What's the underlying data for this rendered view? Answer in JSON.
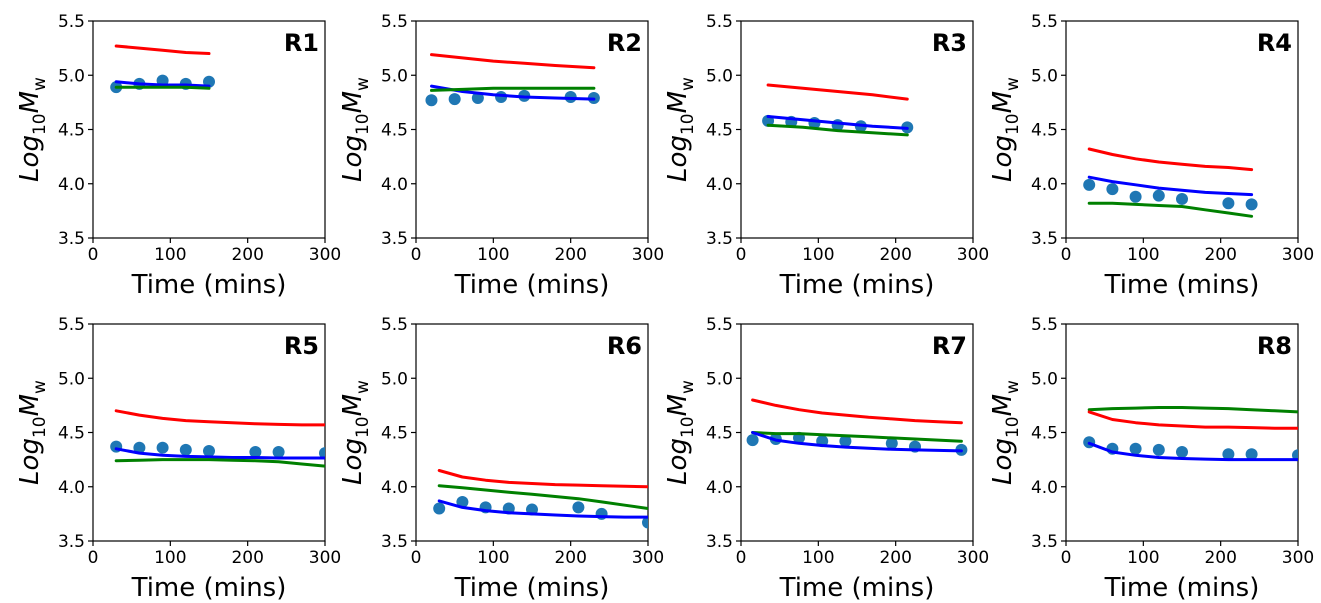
{
  "colors": {
    "red": "#ff0000",
    "green": "#008000",
    "blue": "#0000ff",
    "points": "#1f77b4"
  },
  "chart_data": [
    {
      "type": "line",
      "title": "R1",
      "xlabel": "Time (mins)",
      "ylabel": {
        "prefix": "Log",
        "sub1": "10",
        "main": "M",
        "sub2": "w"
      },
      "xlim": [
        0,
        300
      ],
      "ylim": [
        3.5,
        5.5
      ],
      "xticks": [
        "0",
        "100",
        "200",
        "300"
      ],
      "yticks": [
        "3.5",
        "4.0",
        "4.5",
        "5.0",
        "5.5"
      ],
      "scatter": {
        "x": [
          30,
          60,
          90,
          120,
          150
        ],
        "y": [
          4.89,
          4.92,
          4.95,
          4.92,
          4.94
        ]
      },
      "series": [
        {
          "color": "red",
          "x": [
            30,
            60,
            90,
            120,
            150
          ],
          "y": [
            5.27,
            5.25,
            5.23,
            5.21,
            5.2
          ]
        },
        {
          "color": "blue",
          "x": [
            30,
            60,
            90,
            120,
            150
          ],
          "y": [
            4.94,
            4.92,
            4.91,
            4.91,
            4.9
          ]
        },
        {
          "color": "green",
          "x": [
            30,
            60,
            90,
            120,
            150
          ],
          "y": [
            4.89,
            4.89,
            4.89,
            4.89,
            4.88
          ]
        }
      ]
    },
    {
      "type": "line",
      "title": "R2",
      "xlabel": "Time (mins)",
      "ylabel": {
        "prefix": "Log",
        "sub1": "10",
        "main": "M",
        "sub2": "w"
      },
      "xlim": [
        0,
        300
      ],
      "ylim": [
        3.5,
        5.5
      ],
      "xticks": [
        "0",
        "100",
        "200",
        "300"
      ],
      "yticks": [
        "3.5",
        "4.0",
        "4.5",
        "5.0",
        "5.5"
      ],
      "scatter": {
        "x": [
          20,
          50,
          80,
          110,
          140,
          200,
          230
        ],
        "y": [
          4.77,
          4.78,
          4.79,
          4.8,
          4.81,
          4.8,
          4.79
        ]
      },
      "series": [
        {
          "color": "red",
          "x": [
            20,
            60,
            100,
            140,
            180,
            230
          ],
          "y": [
            5.19,
            5.16,
            5.13,
            5.11,
            5.09,
            5.07
          ]
        },
        {
          "color": "blue",
          "x": [
            20,
            60,
            100,
            140,
            180,
            230
          ],
          "y": [
            4.9,
            4.85,
            4.82,
            4.8,
            4.79,
            4.78
          ]
        },
        {
          "color": "green",
          "x": [
            20,
            60,
            100,
            140,
            180,
            230
          ],
          "y": [
            4.86,
            4.87,
            4.88,
            4.88,
            4.88,
            4.88
          ]
        }
      ]
    },
    {
      "type": "line",
      "title": "R3",
      "xlabel": "Time (mins)",
      "ylabel": {
        "prefix": "Log",
        "sub1": "10",
        "main": "M",
        "sub2": "w"
      },
      "xlim": [
        0,
        300
      ],
      "ylim": [
        3.5,
        5.5
      ],
      "xticks": [
        "0",
        "100",
        "200",
        "300"
      ],
      "yticks": [
        "3.5",
        "4.0",
        "4.5",
        "5.0",
        "5.5"
      ],
      "scatter": {
        "x": [
          35,
          65,
          95,
          125,
          155,
          215
        ],
        "y": [
          4.58,
          4.57,
          4.56,
          4.54,
          4.53,
          4.52
        ]
      },
      "series": [
        {
          "color": "red",
          "x": [
            35,
            80,
            125,
            170,
            215
          ],
          "y": [
            4.91,
            4.88,
            4.85,
            4.82,
            4.78
          ]
        },
        {
          "color": "blue",
          "x": [
            35,
            80,
            125,
            170,
            215
          ],
          "y": [
            4.62,
            4.59,
            4.56,
            4.53,
            4.51
          ]
        },
        {
          "color": "green",
          "x": [
            35,
            80,
            125,
            170,
            215
          ],
          "y": [
            4.54,
            4.52,
            4.49,
            4.47,
            4.45
          ]
        }
      ]
    },
    {
      "type": "line",
      "title": "R4",
      "xlabel": "Time (mins)",
      "ylabel": {
        "prefix": "Log",
        "sub1": "10",
        "main": "M",
        "sub2": "w"
      },
      "xlim": [
        0,
        300
      ],
      "ylim": [
        3.5,
        5.5
      ],
      "xticks": [
        "0",
        "100",
        "200",
        "300"
      ],
      "yticks": [
        "3.5",
        "4.0",
        "4.5",
        "5.0",
        "5.5"
      ],
      "scatter": {
        "x": [
          30,
          60,
          90,
          120,
          150,
          210,
          240
        ],
        "y": [
          3.99,
          3.95,
          3.88,
          3.89,
          3.86,
          3.82,
          3.81
        ]
      },
      "series": [
        {
          "color": "red",
          "x": [
            30,
            60,
            90,
            120,
            150,
            180,
            210,
            240
          ],
          "y": [
            4.32,
            4.27,
            4.23,
            4.2,
            4.18,
            4.16,
            4.15,
            4.13
          ]
        },
        {
          "color": "blue",
          "x": [
            30,
            60,
            90,
            120,
            150,
            180,
            210,
            240
          ],
          "y": [
            4.06,
            4.02,
            3.99,
            3.96,
            3.94,
            3.92,
            3.91,
            3.9
          ]
        },
        {
          "color": "green",
          "x": [
            30,
            60,
            90,
            120,
            150,
            180,
            210,
            240
          ],
          "y": [
            3.82,
            3.82,
            3.81,
            3.8,
            3.79,
            3.76,
            3.73,
            3.7
          ]
        }
      ]
    },
    {
      "type": "line",
      "title": "R5",
      "xlabel": "Time (mins)",
      "ylabel": {
        "prefix": "Log",
        "sub1": "10",
        "main": "M",
        "sub2": "w"
      },
      "xlim": [
        0,
        300
      ],
      "ylim": [
        3.5,
        5.5
      ],
      "xticks": [
        "0",
        "100",
        "200",
        "300"
      ],
      "yticks": [
        "3.5",
        "4.0",
        "4.5",
        "5.0",
        "5.5"
      ],
      "scatter": {
        "x": [
          30,
          60,
          90,
          120,
          150,
          210,
          240,
          300
        ],
        "y": [
          4.37,
          4.36,
          4.36,
          4.34,
          4.33,
          4.32,
          4.32,
          4.31
        ]
      },
      "series": [
        {
          "color": "red",
          "x": [
            30,
            60,
            90,
            120,
            150,
            180,
            210,
            240,
            270,
            300
          ],
          "y": [
            4.7,
            4.66,
            4.63,
            4.61,
            4.6,
            4.59,
            4.58,
            4.575,
            4.57,
            4.57
          ]
        },
        {
          "color": "blue",
          "x": [
            30,
            60,
            90,
            120,
            150,
            180,
            210,
            240,
            270,
            300
          ],
          "y": [
            4.35,
            4.31,
            4.29,
            4.28,
            4.275,
            4.27,
            4.27,
            4.265,
            4.265,
            4.265
          ]
        },
        {
          "color": "green",
          "x": [
            30,
            60,
            90,
            120,
            150,
            180,
            210,
            240,
            270,
            300
          ],
          "y": [
            4.24,
            4.245,
            4.25,
            4.25,
            4.25,
            4.245,
            4.24,
            4.23,
            4.21,
            4.19
          ]
        }
      ]
    },
    {
      "type": "line",
      "title": "R6",
      "xlabel": "Time (mins)",
      "ylabel": {
        "prefix": "Log",
        "sub1": "10",
        "main": "M",
        "sub2": "w"
      },
      "xlim": [
        0,
        300
      ],
      "ylim": [
        3.5,
        5.5
      ],
      "xticks": [
        "0",
        "100",
        "200",
        "300"
      ],
      "yticks": [
        "3.5",
        "4.0",
        "4.5",
        "5.0",
        "5.5"
      ],
      "scatter": {
        "x": [
          30,
          60,
          90,
          120,
          150,
          210,
          240,
          300
        ],
        "y": [
          3.8,
          3.86,
          3.81,
          3.8,
          3.79,
          3.81,
          3.75,
          3.67
        ]
      },
      "series": [
        {
          "color": "red",
          "x": [
            30,
            60,
            90,
            120,
            150,
            180,
            210,
            240,
            270,
            300
          ],
          "y": [
            4.15,
            4.09,
            4.06,
            4.04,
            4.03,
            4.02,
            4.015,
            4.01,
            4.005,
            4.0
          ]
        },
        {
          "color": "green",
          "x": [
            30,
            60,
            90,
            120,
            150,
            180,
            210,
            240,
            270,
            300
          ],
          "y": [
            4.01,
            3.99,
            3.97,
            3.95,
            3.93,
            3.91,
            3.89,
            3.86,
            3.83,
            3.8
          ]
        },
        {
          "color": "blue",
          "x": [
            30,
            60,
            90,
            120,
            150,
            180,
            210,
            240,
            270,
            300
          ],
          "y": [
            3.87,
            3.81,
            3.78,
            3.76,
            3.75,
            3.74,
            3.73,
            3.725,
            3.72,
            3.72
          ]
        }
      ]
    },
    {
      "type": "line",
      "title": "R7",
      "xlabel": "Time (mins)",
      "ylabel": {
        "prefix": "Log",
        "sub1": "10",
        "main": "M",
        "sub2": "w"
      },
      "xlim": [
        0,
        300
      ],
      "ylim": [
        3.5,
        5.5
      ],
      "xticks": [
        "0",
        "100",
        "200",
        "300"
      ],
      "yticks": [
        "3.5",
        "4.0",
        "4.5",
        "5.0",
        "5.5"
      ],
      "scatter": {
        "x": [
          15,
          45,
          75,
          105,
          135,
          195,
          225,
          285
        ],
        "y": [
          4.43,
          4.44,
          4.45,
          4.42,
          4.42,
          4.4,
          4.37,
          4.34
        ]
      },
      "series": [
        {
          "color": "red",
          "x": [
            15,
            45,
            75,
            105,
            135,
            165,
            195,
            225,
            255,
            285
          ],
          "y": [
            4.8,
            4.75,
            4.71,
            4.68,
            4.66,
            4.64,
            4.625,
            4.61,
            4.6,
            4.59
          ]
        },
        {
          "color": "green",
          "x": [
            15,
            45,
            75,
            105,
            135,
            165,
            195,
            225,
            255,
            285
          ],
          "y": [
            4.5,
            4.49,
            4.49,
            4.48,
            4.47,
            4.46,
            4.45,
            4.44,
            4.43,
            4.42
          ]
        },
        {
          "color": "blue",
          "x": [
            15,
            45,
            75,
            105,
            135,
            165,
            195,
            225,
            255,
            285
          ],
          "y": [
            4.5,
            4.43,
            4.4,
            4.38,
            4.365,
            4.355,
            4.345,
            4.34,
            4.335,
            4.33
          ]
        }
      ]
    },
    {
      "type": "line",
      "title": "R8",
      "xlabel": "Time (mins)",
      "ylabel": {
        "prefix": "Log",
        "sub1": "10",
        "main": "M",
        "sub2": "w"
      },
      "xlim": [
        0,
        300
      ],
      "ylim": [
        3.5,
        5.5
      ],
      "xticks": [
        "0",
        "100",
        "200",
        "300"
      ],
      "yticks": [
        "3.5",
        "4.0",
        "4.5",
        "5.0",
        "5.5"
      ],
      "scatter": {
        "x": [
          30,
          60,
          90,
          120,
          150,
          210,
          240,
          300
        ],
        "y": [
          4.41,
          4.35,
          4.35,
          4.34,
          4.32,
          4.3,
          4.3,
          4.29
        ]
      },
      "series": [
        {
          "color": "green",
          "x": [
            30,
            60,
            90,
            120,
            150,
            180,
            210,
            240,
            270,
            300
          ],
          "y": [
            4.71,
            4.72,
            4.725,
            4.73,
            4.73,
            4.725,
            4.72,
            4.71,
            4.7,
            4.69
          ]
        },
        {
          "color": "red",
          "x": [
            30,
            60,
            90,
            120,
            150,
            180,
            210,
            240,
            270,
            300
          ],
          "y": [
            4.69,
            4.62,
            4.59,
            4.57,
            4.56,
            4.55,
            4.55,
            4.545,
            4.54,
            4.54
          ]
        },
        {
          "color": "blue",
          "x": [
            30,
            60,
            90,
            120,
            150,
            180,
            210,
            240,
            270,
            300
          ],
          "y": [
            4.4,
            4.32,
            4.29,
            4.27,
            4.26,
            4.255,
            4.25,
            4.25,
            4.25,
            4.25
          ]
        }
      ]
    }
  ]
}
